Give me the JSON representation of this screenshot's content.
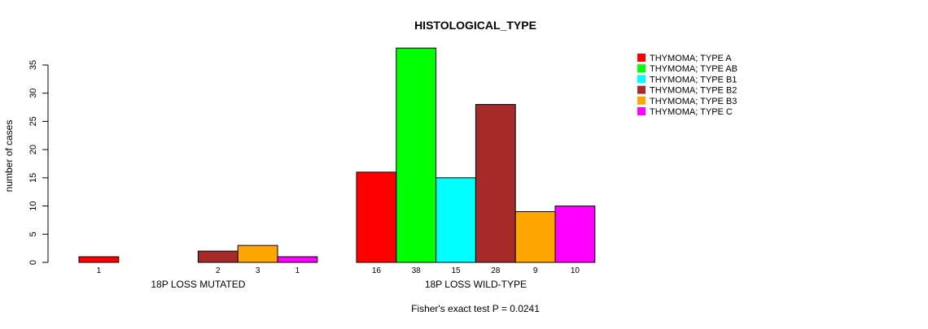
{
  "chart_data": {
    "type": "bar",
    "title": "HISTOLOGICAL_TYPE",
    "ylabel": "number of cases",
    "xlabel": "",
    "ylim": [
      0,
      38
    ],
    "yticks": [
      0,
      5,
      10,
      15,
      20,
      25,
      30,
      35
    ],
    "groups": [
      "18P LOSS MUTATED",
      "18P LOSS WILD-TYPE"
    ],
    "series": [
      {
        "name": "THYMOMA; TYPE A",
        "color": "#ff0000",
        "values": [
          1,
          16
        ]
      },
      {
        "name": "THYMOMA; TYPE AB",
        "color": "#00ff00",
        "values": [
          0,
          38
        ]
      },
      {
        "name": "THYMOMA; TYPE B1",
        "color": "#00ffff",
        "values": [
          0,
          15
        ]
      },
      {
        "name": "THYMOMA; TYPE B2",
        "color": "#a52a2a",
        "values": [
          2,
          28
        ]
      },
      {
        "name": "THYMOMA; TYPE B3",
        "color": "#ffa500",
        "values": [
          3,
          9
        ]
      },
      {
        "name": "THYMOMA; TYPE C",
        "color": "#ff00ff",
        "values": [
          1,
          10
        ]
      }
    ],
    "legend_position": "top-right",
    "grid": false,
    "annotation": "Fisher's exact test P = 0.0241"
  }
}
